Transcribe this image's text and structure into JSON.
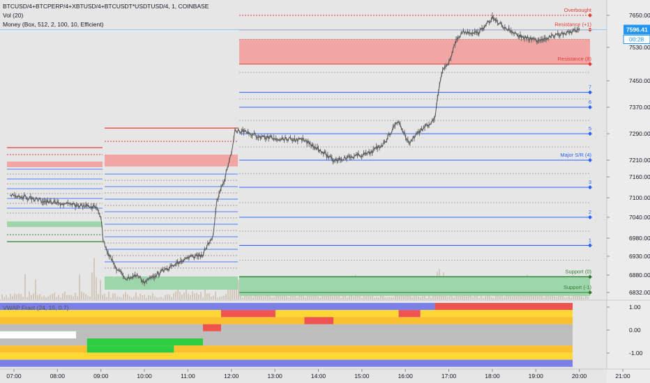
{
  "header": {
    "symbol_line": "BTCUSD/4+BTCPERP/4+XBTUSD/4+BTCUSDT*USDTUSD/4, 1, COINBASE",
    "vol_line": "Vol (20)",
    "money_line": "Money (Box, 512, 2, 100, 10, Efficient)",
    "indicator_line": "VWAP Fract (24, 15, 0.7)"
  },
  "price_badge": {
    "price": "7596.41",
    "timer": "00:28"
  },
  "colors": {
    "blue_line": "#2962ff",
    "red_line": "#e53935",
    "green_line": "#2e7d32",
    "red_box": "#f1a6a4",
    "green_box": "#9ed6ab",
    "dotted": "#8c8c8c",
    "candle": "#6b6b6b",
    "badge": "#2196f3"
  },
  "chart_data": [
    {
      "type": "line",
      "title": "BTCUSD/4+BTCPERP/4+XBTUSD/4+BTCUSDT*USDTUSD/4, 1, COINBASE",
      "x_ticks": [
        "07:00",
        "08:00",
        "09:00",
        "10:00",
        "11:00",
        "12:00",
        "13:00",
        "14:00",
        "15:00",
        "16:00",
        "17:00",
        "18:00",
        "19:00",
        "20:00",
        "21:00"
      ],
      "y_ticks": [
        "7650.00",
        "7530.00",
        "7450.00",
        "7370.00",
        "7290.00",
        "7210.00",
        "7160.00",
        "7100.00",
        "7040.00",
        "6980.00",
        "6930.00",
        "6880.00",
        "6832.00"
      ],
      "price_path": [
        [
          "06:55",
          7110
        ],
        [
          "07:20",
          7100
        ],
        [
          "07:45",
          7088
        ],
        [
          "08:10",
          7080
        ],
        [
          "08:35",
          7075
        ],
        [
          "08:55",
          7070
        ],
        [
          "09:00",
          7040
        ],
        [
          "09:03",
          6975
        ],
        [
          "09:10",
          6940
        ],
        [
          "09:20",
          6900
        ],
        [
          "09:35",
          6870
        ],
        [
          "09:50",
          6880
        ],
        [
          "10:00",
          6860
        ],
        [
          "10:15",
          6880
        ],
        [
          "10:40",
          6905
        ],
        [
          "11:00",
          6925
        ],
        [
          "11:20",
          6935
        ],
        [
          "11:35",
          6990
        ],
        [
          "11:40",
          7090
        ],
        [
          "11:50",
          7150
        ],
        [
          "12:00",
          7230
        ],
        [
          "12:05",
          7300
        ],
        [
          "12:20",
          7295
        ],
        [
          "12:40",
          7280
        ],
        [
          "13:10",
          7275
        ],
        [
          "13:40",
          7270
        ],
        [
          "14:00",
          7245
        ],
        [
          "14:20",
          7210
        ],
        [
          "14:45",
          7220
        ],
        [
          "15:10",
          7230
        ],
        [
          "15:30",
          7260
        ],
        [
          "15:50",
          7330
        ],
        [
          "16:05",
          7260
        ],
        [
          "16:15",
          7290
        ],
        [
          "16:40",
          7330
        ],
        [
          "16:50",
          7470
        ],
        [
          "17:00",
          7490
        ],
        [
          "17:10",
          7560
        ],
        [
          "17:20",
          7590
        ],
        [
          "17:40",
          7580
        ],
        [
          "18:00",
          7640
        ],
        [
          "18:20",
          7600
        ],
        [
          "18:40",
          7570
        ],
        [
          "19:00",
          7555
        ],
        [
          "19:20",
          7570
        ],
        [
          "19:45",
          7585
        ],
        [
          "20:00",
          7597
        ]
      ],
      "levels": [
        {
          "label": "Overbought",
          "price": 7650,
          "color": "#e53935"
        },
        {
          "label": "Resistance (+1)",
          "price": 7596,
          "color": "#e53935"
        },
        {
          "label": "Resistance (8)",
          "price": 7490,
          "color": "#e53935"
        },
        {
          "label": "7",
          "price": 7415,
          "color": "#2962ff"
        },
        {
          "label": "6",
          "price": 7370,
          "color": "#2962ff"
        },
        {
          "label": "5",
          "price": 7290,
          "color": "#2962ff"
        },
        {
          "label": "Major S/R (4)",
          "price": 7210,
          "color": "#2962ff"
        },
        {
          "label": "3",
          "price": 7130,
          "color": "#2962ff"
        },
        {
          "label": "2",
          "price": 7040,
          "color": "#2962ff"
        },
        {
          "label": "1",
          "price": 6960,
          "color": "#2962ff"
        },
        {
          "label": "Support (0)",
          "price": 6875,
          "color": "#2e7d32"
        },
        {
          "label": "Support (-1)",
          "price": 6832,
          "color": "#2e7d32"
        }
      ],
      "current_price": 7596.41
    },
    {
      "type": "heatmap",
      "title": "VWAP Fract (24, 15, 0.7)",
      "y_ticks": [
        "1.00",
        "0.00",
        "-1.00"
      ],
      "rows": [
        {
          "segments": [
            [
              "07:00",
              "17:00",
              "#7b7fe8"
            ],
            [
              "17:00",
              "20:10",
              "#ef5350"
            ]
          ]
        },
        {
          "segments": [
            [
              "07:00",
              "12:05",
              "#fdd835"
            ],
            [
              "12:05",
              "13:20",
              "#ef5350"
            ],
            [
              "13:20",
              "16:10",
              "#fdd835"
            ],
            [
              "16:10",
              "16:40",
              "#ef5350"
            ],
            [
              "16:40",
              "20:10",
              "#fdd835"
            ]
          ]
        },
        {
          "segments": [
            [
              "07:00",
              "14:00",
              "#fbc02d"
            ],
            [
              "14:00",
              "14:40",
              "#ef5350"
            ],
            [
              "14:40",
              "20:10",
              "#fbc02d"
            ]
          ]
        },
        {
          "segments": [
            [
              "07:00",
              "11:40",
              "#bdbdbd"
            ],
            [
              "11:40",
              "12:05",
              "#ef5350"
            ],
            [
              "12:05",
              "20:10",
              "#bdbdbd"
            ]
          ]
        },
        {
          "segments": [
            [
              "07:00",
              "08:45",
              "#ffffff"
            ],
            [
              "08:45",
              "20:10",
              "#bdbdbd"
            ]
          ]
        },
        {
          "segments": [
            [
              "07:00",
              "09:00",
              "#bdbdbd"
            ],
            [
              "09:00",
              "11:40",
              "#2ecc40"
            ],
            [
              "11:40",
              "20:10",
              "#bdbdbd"
            ]
          ]
        },
        {
          "segments": [
            [
              "07:00",
              "09:00",
              "#fbc02d"
            ],
            [
              "09:00",
              "11:00",
              "#2ecc40"
            ],
            [
              "11:00",
              "20:10",
              "#fbc02d"
            ]
          ]
        },
        {
          "segments": [
            [
              "07:00",
              "20:10",
              "#fdd835"
            ]
          ]
        },
        {
          "segments": [
            [
              "07:00",
              "20:10",
              "#7b7fe8"
            ]
          ]
        }
      ]
    }
  ]
}
